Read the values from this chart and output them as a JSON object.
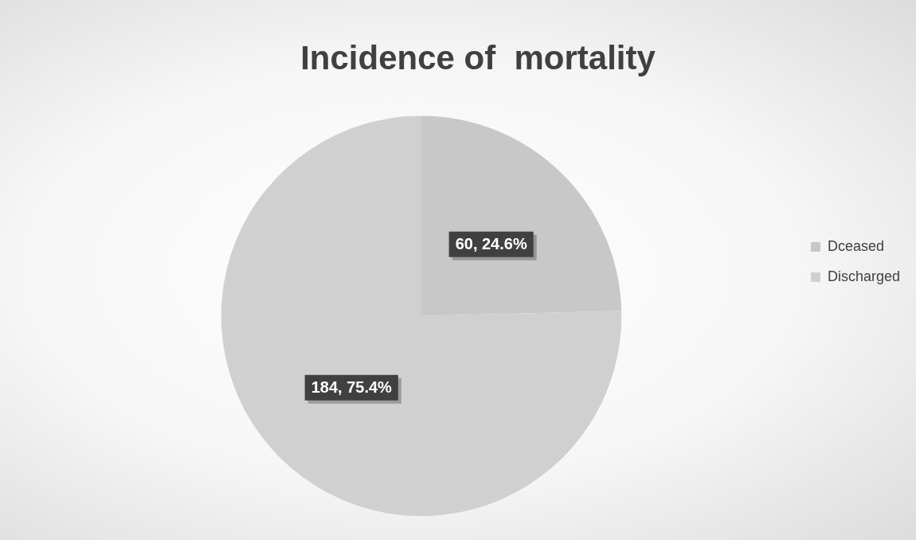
{
  "chart_data": {
    "type": "pie",
    "title": "Incidence of  mortality",
    "categories": [
      "Dceased",
      "Discharged"
    ],
    "values": [
      60,
      184
    ],
    "colors": [
      "#c8c8c8",
      "#d0d0d0"
    ],
    "value_labels": [
      "60, 24.6%",
      "184, 75.4%"
    ],
    "legend": "right"
  }
}
